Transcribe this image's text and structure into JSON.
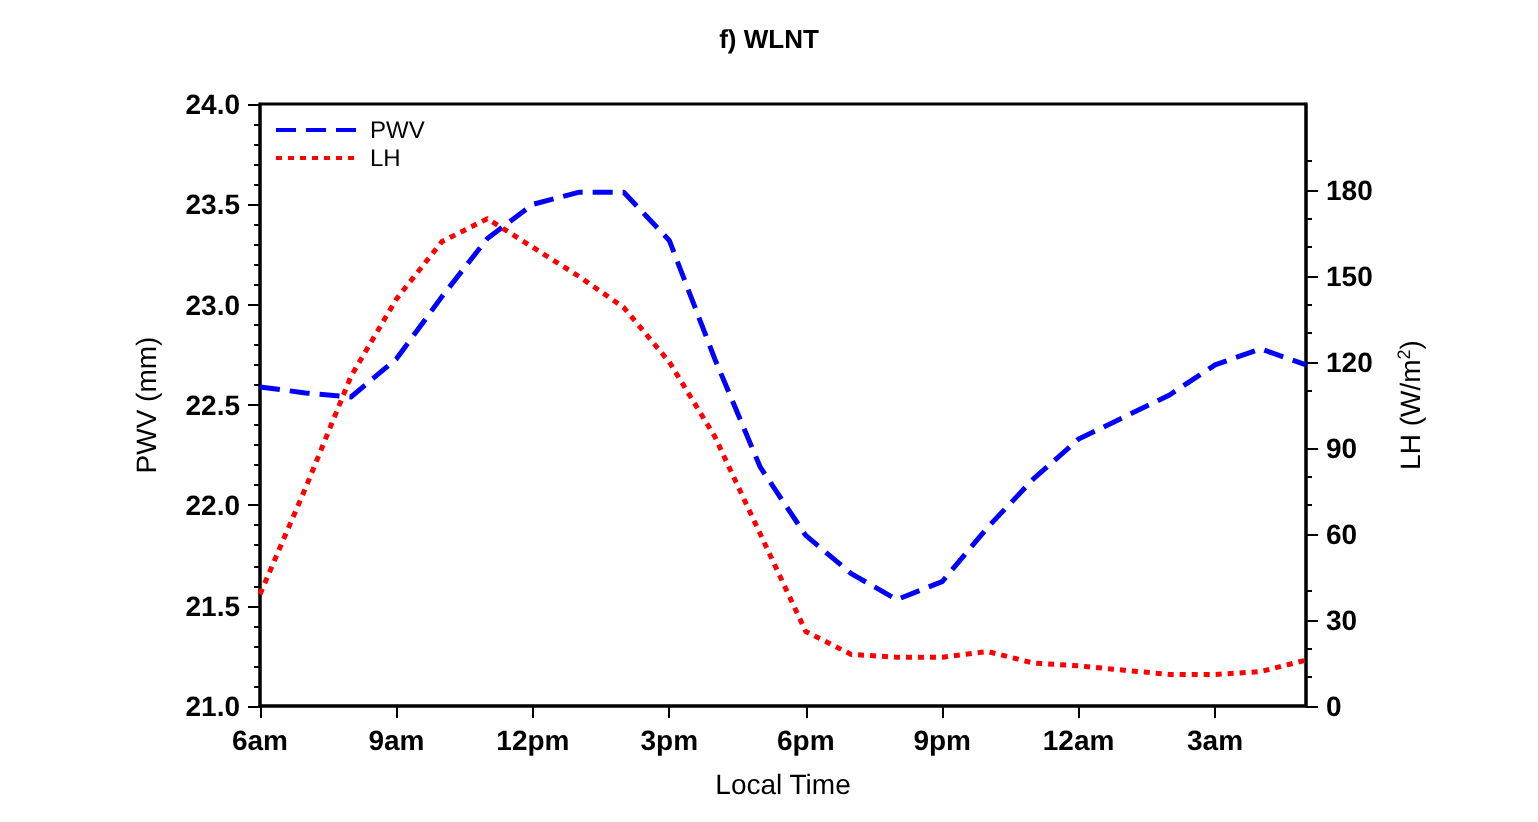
{
  "chart_data": {
    "type": "line",
    "title": "f) WLNT",
    "xlabel": "Local Time",
    "ylabel": "PWV (mm)",
    "y2label": "LH (W/m$^{2}$)",
    "x": [
      "--01-01T06:00",
      "--01-01T07:00",
      "--01-01T08:00",
      "--01-01T09:00",
      "--01-01T10:00",
      "--01-01T11:00",
      "--01-01T12:00",
      "--01-01T13:00",
      "--01-01T14:00",
      "--01-01T15:00",
      "--01-01T16:00",
      "--01-01T17:00",
      "--01-01T18:00",
      "--01-01T19:00",
      "--01-01T20:00",
      "--01-01T21:00",
      "--01-01T22:00",
      "--01-01T23:00",
      "--01-02T00:00",
      "--01-02T01:00",
      "--01-02T02:00",
      "--01-02T03:00",
      "--01-02T04:00",
      "--01-02T05:00"
    ],
    "series": [
      {
        "name": "PWV",
        "color": "#0000ff",
        "line_style": "dashed",
        "values": [
          22.59,
          22.56,
          22.54,
          22.73,
          23.04,
          23.33,
          23.5,
          23.56,
          23.56,
          23.32,
          22.73,
          22.19,
          21.85,
          21.66,
          21.53,
          21.62,
          21.89,
          22.13,
          22.33,
          22.44,
          22.55,
          22.7,
          22.78,
          22.7
        ]
      },
      {
        "name": "LH",
        "color": "#ff0000",
        "line_style": "dotted",
        "axis": "y2",
        "values": [
          39,
          76,
          115,
          142,
          162,
          170,
          160,
          150,
          139,
          120,
          94,
          60,
          26,
          18,
          17,
          17,
          19,
          15,
          14,
          12.5,
          11,
          11,
          12,
          16
        ]
      }
    ],
    "xlim": [
      "--01-01T06:00",
      "--01-02T05:00"
    ],
    "xticks": [
      {
        "value": "--01-01T06:00",
        "label": "6am"
      },
      {
        "value": "--01-01T09:00",
        "label": "9am"
      },
      {
        "value": "--01-01T12:00",
        "label": "12pm"
      },
      {
        "value": "--01-01T15:00",
        "label": "3pm"
      },
      {
        "value": "--01-01T18:00",
        "label": "6pm"
      },
      {
        "value": "--01-01T21:00",
        "label": "9pm"
      },
      {
        "value": "--01-02T00:00",
        "label": "12am"
      },
      {
        "value": "--01-02T03:00",
        "label": "3am"
      }
    ],
    "ylim": [
      21,
      24
    ],
    "yticks": [
      {
        "value": 21,
        "label": "21.0"
      },
      21.5,
      {
        "value": 22,
        "label": "22.0"
      },
      22.5,
      {
        "value": 23,
        "label": "23.0"
      },
      23.5,
      {
        "value": 24,
        "label": "24.0"
      }
    ],
    "y2lim": [
      0,
      210
    ],
    "y2ticks": [
      0,
      30,
      60,
      90,
      120,
      150,
      180
    ],
    "grid": false,
    "legend": "top left",
    "marker": "none"
  }
}
